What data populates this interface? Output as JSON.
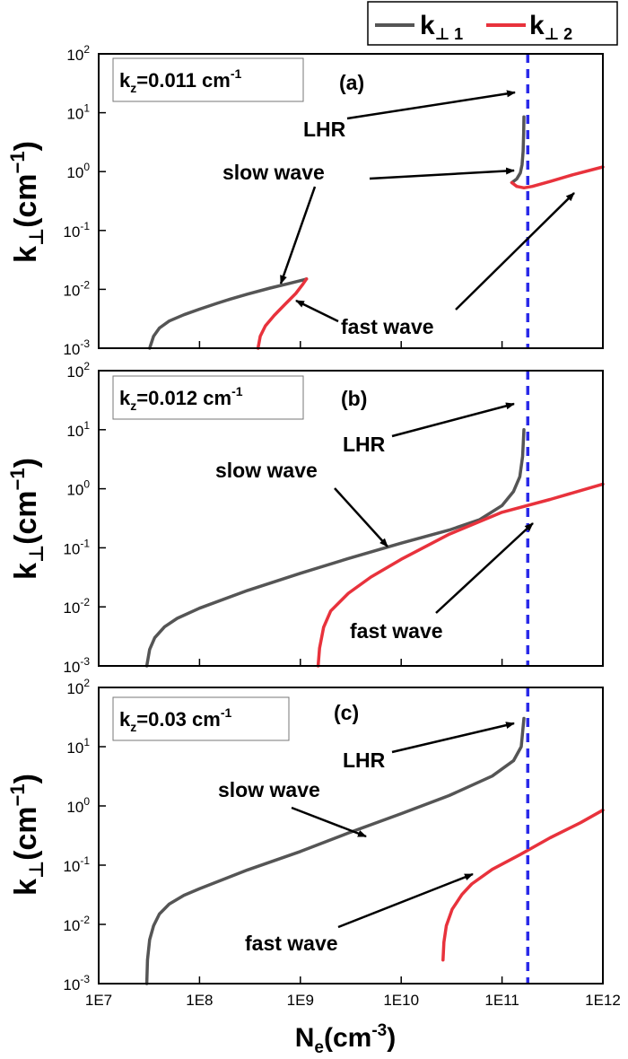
{
  "figure": {
    "xlabel": "N",
    "xlabel_sub": "e",
    "xlabel_unit": "(cm",
    "xlabel_sup": "-3",
    "xlabel_close": ")",
    "ylabel": "k",
    "ylabel_sub": "⊥",
    "ylabel_unit": "(cm",
    "ylabel_sup": "−1",
    "ylabel_close": ")",
    "legend": [
      {
        "key": "k",
        "sub": "⊥ 1",
        "color": "#555555"
      },
      {
        "key": "k",
        "sub": "⊥ 2",
        "color": "#e8323c"
      }
    ],
    "x_ticks": [
      "1E7",
      "1E8",
      "1E9",
      "1E10",
      "1E11",
      "1E12"
    ],
    "y_ticks": [
      {
        "base": "10",
        "exp": "2"
      },
      {
        "base": "10",
        "exp": "1"
      },
      {
        "base": "10",
        "exp": "0"
      },
      {
        "base": "10",
        "exp": "-1"
      },
      {
        "base": "10",
        "exp": "-2"
      },
      {
        "base": "10",
        "exp": "-3"
      }
    ],
    "lhr_color": "#2a2ae8",
    "arrow_text": {
      "lhr": "LHR",
      "slow": "slow wave",
      "fast": "fast wave"
    }
  },
  "chart_data": [
    {
      "type": "line",
      "panel": "(a)",
      "kz_label": "=0.011 cm",
      "kz_sup": "-1",
      "xscale": "log",
      "yscale": "log",
      "xlim": [
        10000000.0,
        1000000000000.0
      ],
      "ylim": [
        0.001,
        100
      ],
      "lhr_density": 180000000000.0,
      "series": [
        {
          "name": "k⊥1",
          "x": [
            32000000.0,
            35000000.0,
            40000000.0,
            50000000.0,
            70000000.0,
            100000000.0,
            150000000.0,
            200000000.0,
            300000000.0,
            500000000.0,
            800000000.0,
            1100000000.0,
            1150000000.0
          ],
          "y": [
            0.001,
            0.0016,
            0.0022,
            0.0029,
            0.0037,
            0.0046,
            0.0058,
            0.0068,
            0.0083,
            0.0105,
            0.0128,
            0.0146,
            0.015
          ]
        },
        {
          "name": "k⊥1",
          "x": [
            125000000000.0,
            140000000000.0,
            152000000000.0,
            158000000000.0,
            162000000000.0,
            164000000000.0,
            165000000000.0
          ],
          "y": [
            0.65,
            0.75,
            0.95,
            1.3,
            2.2,
            4.5,
            8.5
          ]
        },
        {
          "name": "k⊥2",
          "x": [
            380000000.0,
            400000000.0,
            450000000.0,
            550000000.0,
            700000000.0,
            900000000.0,
            1050000000.0,
            1150000000.0
          ],
          "y": [
            0.001,
            0.0016,
            0.0024,
            0.0036,
            0.0055,
            0.0085,
            0.012,
            0.015
          ]
        },
        {
          "name": "k⊥2",
          "x": [
            125000000000.0,
            140000000000.0,
            165000000000.0,
            200000000000.0,
            300000000000.0,
            500000000000.0,
            1000000000000.0
          ],
          "y": [
            0.65,
            0.56,
            0.53,
            0.56,
            0.68,
            0.88,
            1.2
          ]
        }
      ]
    },
    {
      "type": "line",
      "panel": "(b)",
      "kz_label": "=0.012 cm",
      "kz_sup": "-1",
      "xscale": "log",
      "yscale": "log",
      "xlim": [
        10000000.0,
        1000000000000.0
      ],
      "ylim": [
        0.001,
        100
      ],
      "lhr_density": 180000000000.0,
      "series": [
        {
          "name": "k⊥1",
          "x": [
            30000000.0,
            32000000.0,
            36000000.0,
            45000000.0,
            60000000.0,
            100000000.0,
            300000000.0,
            1000000000.0,
            3000000000.0,
            10000000000.0,
            30000000000.0,
            60000000000.0,
            100000000000.0,
            130000000000.0,
            150000000000.0,
            160000000000.0,
            165000000000.0
          ],
          "y": [
            0.001,
            0.0019,
            0.003,
            0.0046,
            0.0064,
            0.0095,
            0.019,
            0.037,
            0.066,
            0.12,
            0.2,
            0.3,
            0.52,
            0.9,
            1.6,
            3.5,
            10
          ]
        },
        {
          "name": "k⊥2",
          "x": [
            1500000000.0,
            1550000000.0,
            1700000000.0,
            2000000000.0,
            3000000000.0,
            5000000000.0,
            10000000000.0,
            30000000000.0,
            100000000000.0,
            300000000000.0,
            1000000000000.0
          ],
          "y": [
            0.001,
            0.002,
            0.0045,
            0.0085,
            0.017,
            0.032,
            0.064,
            0.17,
            0.4,
            0.66,
            1.2
          ]
        }
      ]
    },
    {
      "type": "line",
      "panel": "(c)",
      "kz_label": "=0.03 cm",
      "kz_sup": "-1",
      "xscale": "log",
      "yscale": "log",
      "xlim": [
        10000000.0,
        1000000000000.0
      ],
      "ylim": [
        0.001,
        100
      ],
      "lhr_density": 180000000000.0,
      "series": [
        {
          "name": "k⊥1",
          "x": [
            30000000.0,
            30500000.0,
            32000000.0,
            35000000.0,
            40000000.0,
            50000000.0,
            70000000.0,
            100000000.0,
            300000000.0,
            1000000000.0,
            3000000000.0,
            10000000000.0,
            30000000000.0,
            80000000000.0,
            130000000000.0,
            155000000000.0,
            165000000000.0
          ],
          "y": [
            0.001,
            0.0025,
            0.0055,
            0.0095,
            0.015,
            0.022,
            0.031,
            0.04,
            0.083,
            0.17,
            0.35,
            0.74,
            1.5,
            3.2,
            5.8,
            10,
            30
          ]
        },
        {
          "name": "k⊥2",
          "x": [
            26000000000.0,
            26500000000.0,
            28000000000.0,
            32000000000.0,
            40000000000.0,
            50000000000.0,
            80000000000.0,
            150000000000.0,
            300000000000.0,
            600000000000.0,
            1000000000000.0
          ],
          "y": [
            0.0025,
            0.005,
            0.0095,
            0.018,
            0.032,
            0.048,
            0.085,
            0.15,
            0.29,
            0.52,
            0.85
          ]
        }
      ]
    }
  ]
}
